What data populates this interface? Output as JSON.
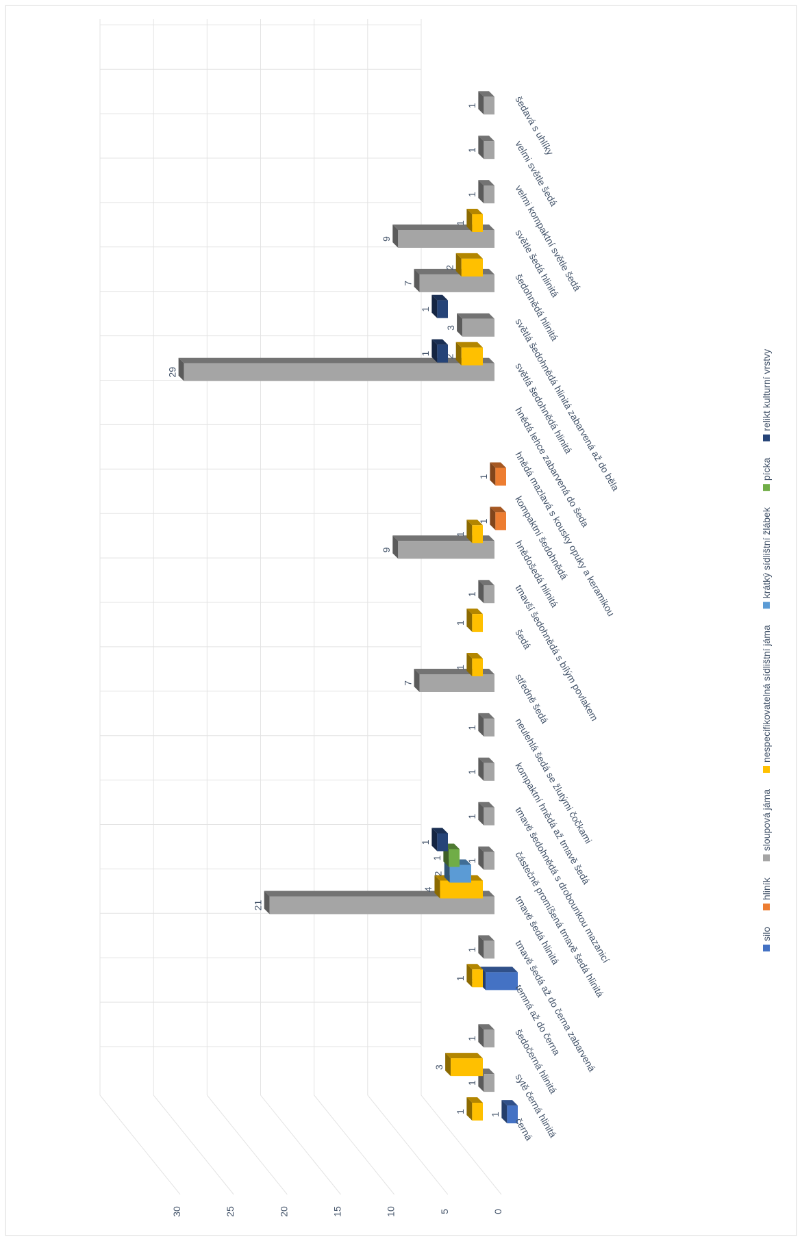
{
  "chart_data": {
    "type": "bar3d",
    "categories": [
      "černá",
      "sytě černá hlinitá",
      "šedočerná hlinitá",
      "temná až do černa",
      "tmavě šedá až do černa zabarvená",
      "tmavě šedá hlinitá",
      "částečně promíšená tmavě šedá hlinitá",
      "tmavě šedohnědá s drobounkou mazanicí",
      "kompaktní hnědá až tmavě šedá",
      "neulehlá šedá se žlutými čočkami",
      "středně šedá",
      "šedá",
      "tmavší šedohnědá s bílým povlakem",
      "hnědošedá hlinitá",
      "kompaktní šedohnědá",
      "hnědá mazlavá s kousky opuky a keramikou",
      "hnědá lehce zabarvená do šeda",
      "světlá šedohnědá hlinitá",
      "světlá šedohnědá hlinitá zabarvená až do běla",
      "šedohnědá hlinitá",
      "světle šedá hlinitá",
      "velmi kompaktní světle šedá",
      "velmi světle šedá",
      "šedavá s uhlíky"
    ],
    "series": [
      {
        "name": "silo",
        "color": "#4472c4",
        "values": [
          null,
          1,
          null,
          null,
          3,
          null,
          null,
          null,
          null,
          null,
          null,
          null,
          null,
          null,
          null,
          null,
          null,
          null,
          null,
          null,
          null,
          null,
          null,
          null
        ]
      },
      {
        "name": "hliník",
        "color": "#ed7d31",
        "values": [
          null,
          null,
          null,
          null,
          null,
          null,
          null,
          null,
          null,
          null,
          null,
          null,
          null,
          null,
          1,
          1,
          null,
          null,
          null,
          null,
          null,
          null,
          null,
          null
        ]
      },
      {
        "name": "sloupová jáma",
        "color": "#a5a5a5",
        "values": [
          null,
          1,
          1,
          null,
          1,
          21,
          1,
          1,
          1,
          1,
          7,
          null,
          1,
          9,
          null,
          null,
          null,
          29,
          3,
          7,
          9,
          1,
          1,
          1
        ]
      },
      {
        "name": "nespecifikovatelná sídlištní jáma",
        "color": "#ffc000",
        "values": [
          1,
          3,
          null,
          1,
          null,
          4,
          null,
          null,
          null,
          null,
          1,
          1,
          null,
          1,
          null,
          null,
          null,
          2,
          null,
          2,
          1,
          null,
          null,
          null
        ]
      },
      {
        "name": "krátký sídlištní žlábek",
        "color": "#5b9bd5",
        "values": [
          null,
          null,
          null,
          null,
          null,
          2,
          null,
          null,
          null,
          null,
          null,
          null,
          null,
          null,
          null,
          null,
          null,
          null,
          null,
          null,
          null,
          null,
          null,
          null
        ]
      },
      {
        "name": "pícka",
        "color": "#70ad47",
        "values": [
          null,
          null,
          null,
          null,
          null,
          1,
          null,
          null,
          null,
          null,
          null,
          null,
          null,
          null,
          null,
          null,
          null,
          null,
          null,
          null,
          null,
          null,
          null,
          null
        ]
      },
      {
        "name": "relikt kulturní vrstvy",
        "color": "#264478",
        "values": [
          null,
          null,
          null,
          null,
          null,
          1,
          null,
          null,
          null,
          null,
          null,
          null,
          null,
          null,
          null,
          null,
          1,
          1,
          null,
          null,
          null,
          null,
          null,
          null
        ]
      }
    ],
    "ylim": [
      0,
      30
    ],
    "yticks": [
      0,
      5,
      10,
      15,
      20,
      25,
      30
    ],
    "grid": true,
    "legend": "right"
  }
}
